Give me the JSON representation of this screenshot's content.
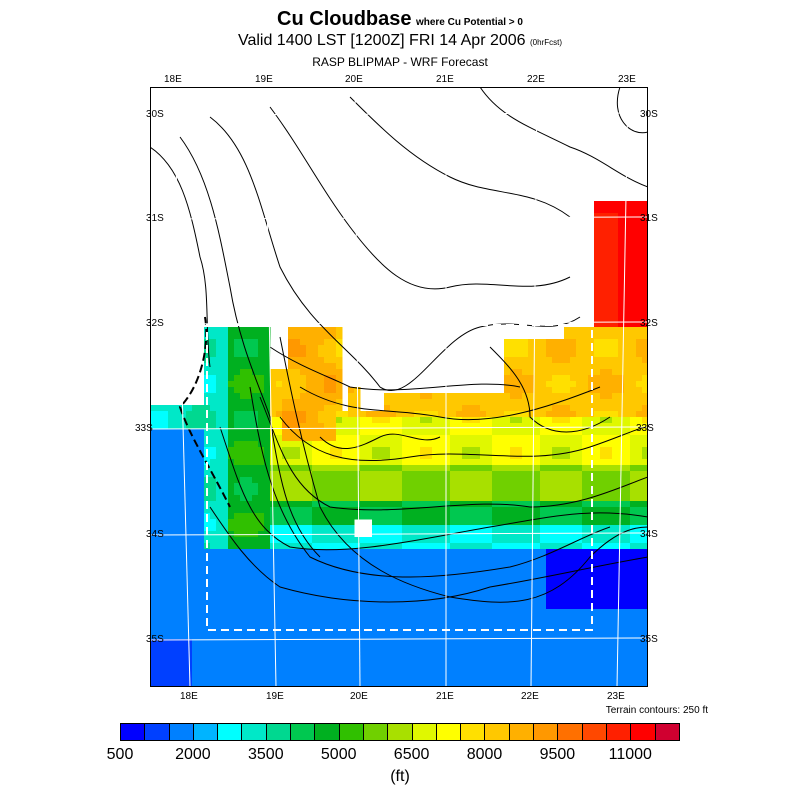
{
  "title": {
    "main": "Cu Cloudbase",
    "qualifier": "where Cu Potential > 0"
  },
  "valid": {
    "text": "Valid 1400 LST [1200Z] FRI 14 Apr 2006",
    "fcst": "(0hrFcst)"
  },
  "model": "RASP BLIPMAP - WRF Forecast",
  "map": {
    "lon_labels_top": [
      "18E",
      "19E",
      "20E",
      "21E",
      "22E",
      "23E"
    ],
    "lon_labels_bottom": [
      "18E",
      "19E",
      "20E",
      "21E",
      "22E",
      "23E"
    ],
    "lat_labels_left": [
      "30S",
      "31S",
      "32S",
      "33S",
      "34S",
      "35S"
    ],
    "lat_labels_right": [
      "30S",
      "31S",
      "32S",
      "33S",
      "34S",
      "35S"
    ],
    "terrain_note": "Terrain contours: 250 ft"
  },
  "colorbar": {
    "colors": [
      "#0000ff",
      "#0040ff",
      "#0080ff",
      "#00b4ff",
      "#00ffff",
      "#00e8c8",
      "#00d890",
      "#00c850",
      "#00b020",
      "#30c000",
      "#70d000",
      "#a8e000",
      "#e0f800",
      "#ffff00",
      "#ffe000",
      "#ffc800",
      "#ffb000",
      "#ff9800",
      "#ff7000",
      "#ff4800",
      "#ff2000",
      "#ff0000",
      "#d00030"
    ],
    "labels": [
      "500",
      "2000",
      "3500",
      "5000",
      "6500",
      "8000",
      "9500",
      "11000"
    ],
    "unit": "(ft)"
  }
}
